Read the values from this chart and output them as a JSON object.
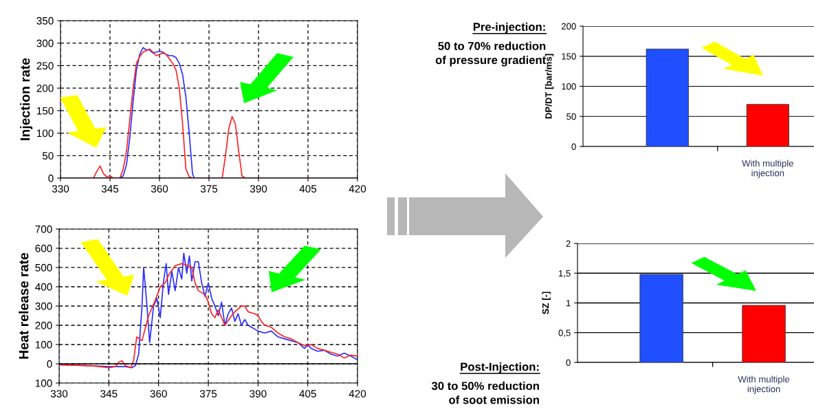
{
  "chart_data": [
    {
      "type": "line",
      "ylabel": "Injection rate",
      "xlim": [
        330,
        420
      ],
      "xticks": [
        330,
        345,
        360,
        375,
        390,
        405,
        420
      ],
      "ylim": [
        0,
        350
      ],
      "yticks": [
        0,
        50,
        100,
        150,
        200,
        250,
        300,
        350
      ],
      "grid": true,
      "series": [
        {
          "color": "#2a2aff",
          "x": [
            330,
            348,
            349,
            350,
            351,
            352,
            353,
            354,
            355,
            356,
            357,
            358,
            359,
            360,
            361,
            362,
            363,
            364,
            365,
            366,
            367,
            368,
            369,
            370,
            370.5,
            420
          ],
          "values": [
            0,
            0,
            5,
            30,
            90,
            170,
            240,
            275,
            290,
            285,
            285,
            278,
            280,
            282,
            280,
            275,
            272,
            272,
            268,
            255,
            230,
            180,
            100,
            10,
            0,
            0
          ]
        },
        {
          "color": "#ff2020",
          "x": [
            330,
            340,
            341,
            342,
            343,
            344,
            345,
            346,
            348,
            349,
            350,
            351,
            352,
            353,
            354,
            355,
            356,
            357,
            358,
            359,
            360,
            361,
            362,
            363,
            364,
            365,
            366,
            367,
            368,
            369,
            370,
            379,
            380,
            381,
            382,
            383,
            384,
            385,
            386,
            420
          ],
          "values": [
            0,
            0,
            15,
            27,
            10,
            3,
            5,
            0,
            0,
            20,
            60,
            130,
            200,
            255,
            270,
            280,
            283,
            287,
            280,
            272,
            275,
            278,
            275,
            265,
            255,
            240,
            200,
            120,
            20,
            3,
            0,
            0,
            50,
            110,
            137,
            120,
            60,
            5,
            0,
            0
          ]
        }
      ]
    },
    {
      "type": "line",
      "ylabel": "Heat release rate",
      "xlim": [
        330,
        420
      ],
      "xticks": [
        330,
        345,
        360,
        375,
        390,
        405,
        420
      ],
      "ylim": [
        -100,
        700
      ],
      "yticks": [
        {
          "value": -100,
          "label": "100"
        },
        0,
        100,
        200,
        300,
        400,
        500,
        600,
        700
      ],
      "grid": true,
      "series": [
        {
          "color": "#2a2aff",
          "x": [
            330,
            340,
            345,
            350,
            352,
            353,
            354,
            355,
            355.5,
            356.5,
            357.3,
            358.5,
            359.5,
            360.5,
            361.5,
            362.3,
            363,
            364,
            365,
            366,
            367,
            367.6,
            368.5,
            369.3,
            370,
            371,
            372,
            373,
            374,
            375,
            376,
            377,
            378,
            379,
            380,
            381,
            382,
            383,
            384,
            385,
            386,
            387,
            388,
            390,
            392,
            394,
            396,
            398,
            400,
            402,
            404,
            405,
            406,
            408,
            410,
            412,
            414,
            416,
            418,
            420
          ],
          "values": [
            -5,
            -10,
            -15,
            -15,
            -20,
            -10,
            50,
            300,
            500,
            300,
            110,
            300,
            340,
            240,
            430,
            520,
            360,
            480,
            380,
            500,
            440,
            575,
            470,
            560,
            430,
            530,
            530,
            420,
            350,
            420,
            340,
            300,
            250,
            320,
            200,
            260,
            290,
            220,
            260,
            200,
            230,
            200,
            190,
            170,
            160,
            170,
            140,
            130,
            120,
            110,
            80,
            100,
            80,
            65,
            70,
            50,
            40,
            55,
            40,
            20
          ]
        },
        {
          "color": "#ff2020",
          "x": [
            330,
            340,
            345,
            347,
            348,
            349,
            350,
            351.7,
            352.5,
            353.4,
            355,
            357,
            359,
            360.5,
            362,
            363,
            365,
            367,
            369,
            370,
            371,
            372,
            374,
            375,
            376,
            377,
            378,
            380,
            382,
            383,
            385,
            386,
            387,
            389,
            390,
            391,
            392,
            394,
            396,
            398,
            400,
            402,
            404,
            406,
            408,
            410,
            412,
            414,
            416,
            418,
            420
          ],
          "values": [
            -5,
            -10,
            -20,
            -15,
            10,
            15,
            -10,
            -20,
            20,
            140,
            120,
            250,
            330,
            400,
            420,
            460,
            510,
            520,
            510,
            500,
            420,
            380,
            360,
            320,
            260,
            240,
            280,
            200,
            250,
            270,
            300,
            300,
            270,
            260,
            250,
            220,
            200,
            190,
            160,
            140,
            130,
            110,
            95,
            100,
            80,
            70,
            60,
            50,
            30,
            45,
            40
          ]
        }
      ]
    },
    {
      "type": "bar",
      "ylabel": "DP/DT [bar/ms]",
      "categories": [
        null,
        "With multiple injection"
      ],
      "values": [
        162,
        70
      ],
      "colors": [
        "#1f4fff",
        "#ff0000"
      ],
      "ylim": [
        0,
        200
      ],
      "yticks": [
        0,
        50,
        100,
        150,
        200
      ],
      "grid": "y",
      "annotations": [
        "Pre-injection:",
        "50 to 70% reduction\nof pressure gradient"
      ]
    },
    {
      "type": "bar",
      "ylabel": "SZ [-]",
      "categories": [
        null,
        "With multiple injection"
      ],
      "values": [
        1.48,
        0.96
      ],
      "colors": [
        "#1f4fff",
        "#ff0000"
      ],
      "ylim": [
        0,
        2
      ],
      "yticks": [
        0,
        {
          "value": 0.5,
          "label": "0,5"
        },
        1,
        {
          "value": 1.5,
          "label": "1,5"
        },
        2
      ],
      "grid": "y",
      "annotations": [
        "Post-Injection:",
        "30 to 50% reduction\nof soot emission"
      ]
    }
  ]
}
